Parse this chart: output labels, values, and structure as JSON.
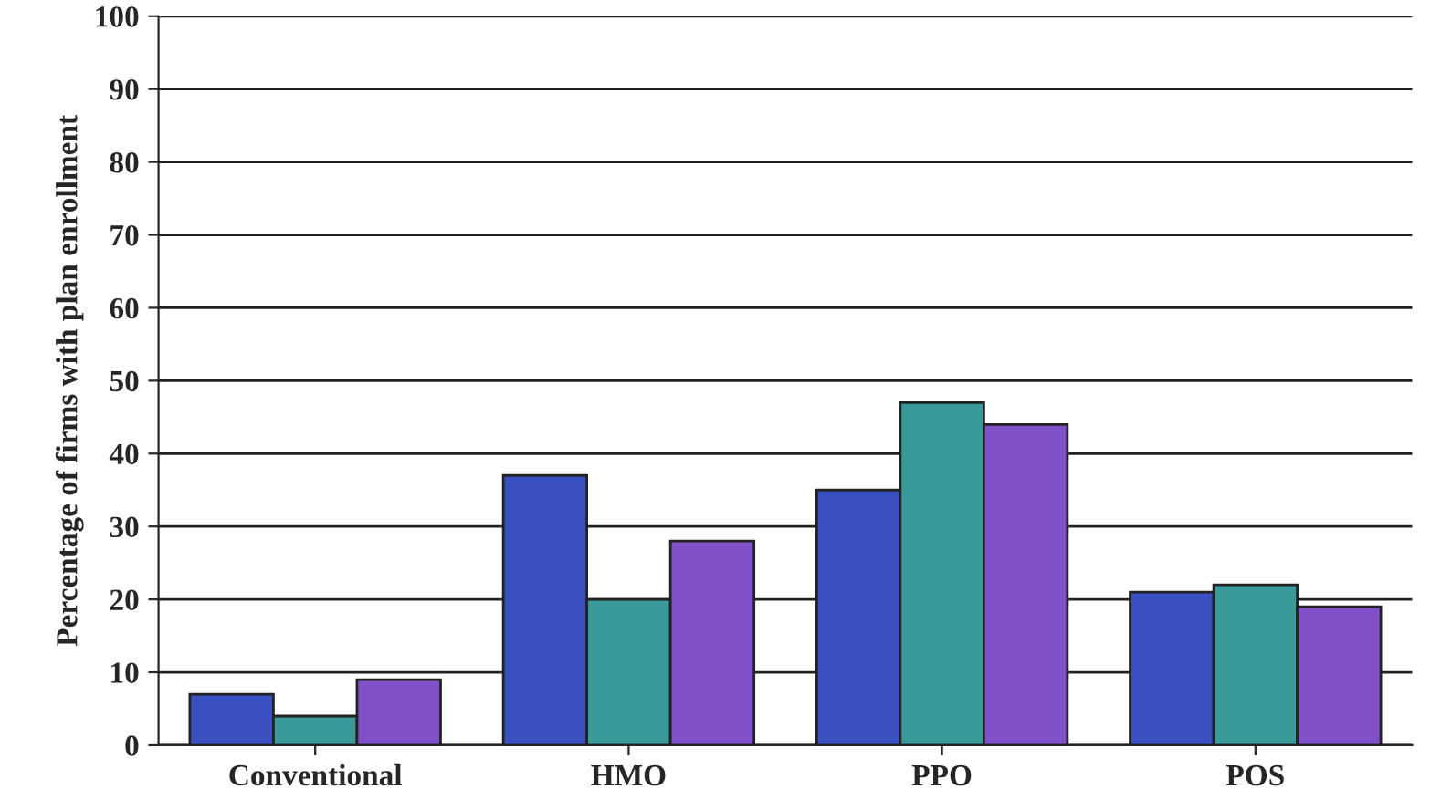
{
  "chart_data": {
    "type": "bar",
    "ylabel": "Percentage of firms with plan enrollment",
    "categories": [
      "Conventional",
      "HMO",
      "PPO",
      "POS"
    ],
    "series": [
      {
        "color": "#3a4fc0",
        "values": [
          7,
          37,
          35,
          21
        ]
      },
      {
        "color": "#3a9a9a",
        "values": [
          4,
          20,
          47,
          22
        ]
      },
      {
        "color": "#8050c8",
        "values": [
          9,
          28,
          44,
          19
        ]
      }
    ],
    "ylim": [
      0,
      100
    ],
    "yticks": [
      0,
      10,
      20,
      30,
      40,
      50,
      60,
      70,
      80,
      90,
      100
    ],
    "grid": "y"
  }
}
